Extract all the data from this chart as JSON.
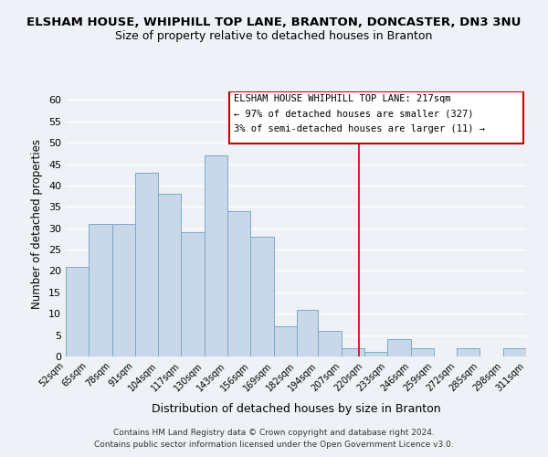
{
  "title": "ELSHAM HOUSE, WHIPHILL TOP LANE, BRANTON, DONCASTER, DN3 3NU",
  "subtitle": "Size of property relative to detached houses in Branton",
  "xlabel": "Distribution of detached houses by size in Branton",
  "ylabel": "Number of detached properties",
  "bar_color": "#c8d8e8",
  "bar_edge_color": "#7aaac8",
  "bins": [
    52,
    65,
    78,
    91,
    104,
    117,
    130,
    143,
    156,
    169,
    182,
    194,
    207,
    220,
    233,
    246,
    259,
    272,
    285,
    298,
    311
  ],
  "counts": [
    21,
    31,
    31,
    43,
    38,
    29,
    47,
    34,
    28,
    7,
    11,
    6,
    2,
    1,
    4,
    2,
    0,
    2,
    0,
    2
  ],
  "tick_labels": [
    "52sqm",
    "65sqm",
    "78sqm",
    "91sqm",
    "104sqm",
    "117sqm",
    "130sqm",
    "143sqm",
    "156sqm",
    "169sqm",
    "182sqm",
    "194sqm",
    "207sqm",
    "220sqm",
    "233sqm",
    "246sqm",
    "259sqm",
    "272sqm",
    "285sqm",
    "298sqm",
    "311sqm"
  ],
  "vline_x": 217,
  "vline_color": "#cc0000",
  "ylim": [
    0,
    62
  ],
  "yticks": [
    0,
    5,
    10,
    15,
    20,
    25,
    30,
    35,
    40,
    45,
    50,
    55,
    60
  ],
  "annotation_title": "ELSHAM HOUSE WHIPHILL TOP LANE: 217sqm",
  "annotation_line1": "← 97% of detached houses are smaller (327)",
  "annotation_line2": "3% of semi-detached houses are larger (11) →",
  "footer1": "Contains HM Land Registry data © Crown copyright and database right 2024.",
  "footer2": "Contains public sector information licensed under the Open Government Licence v3.0.",
  "background_color": "#eef2f7",
  "grid_color": "#ffffff"
}
